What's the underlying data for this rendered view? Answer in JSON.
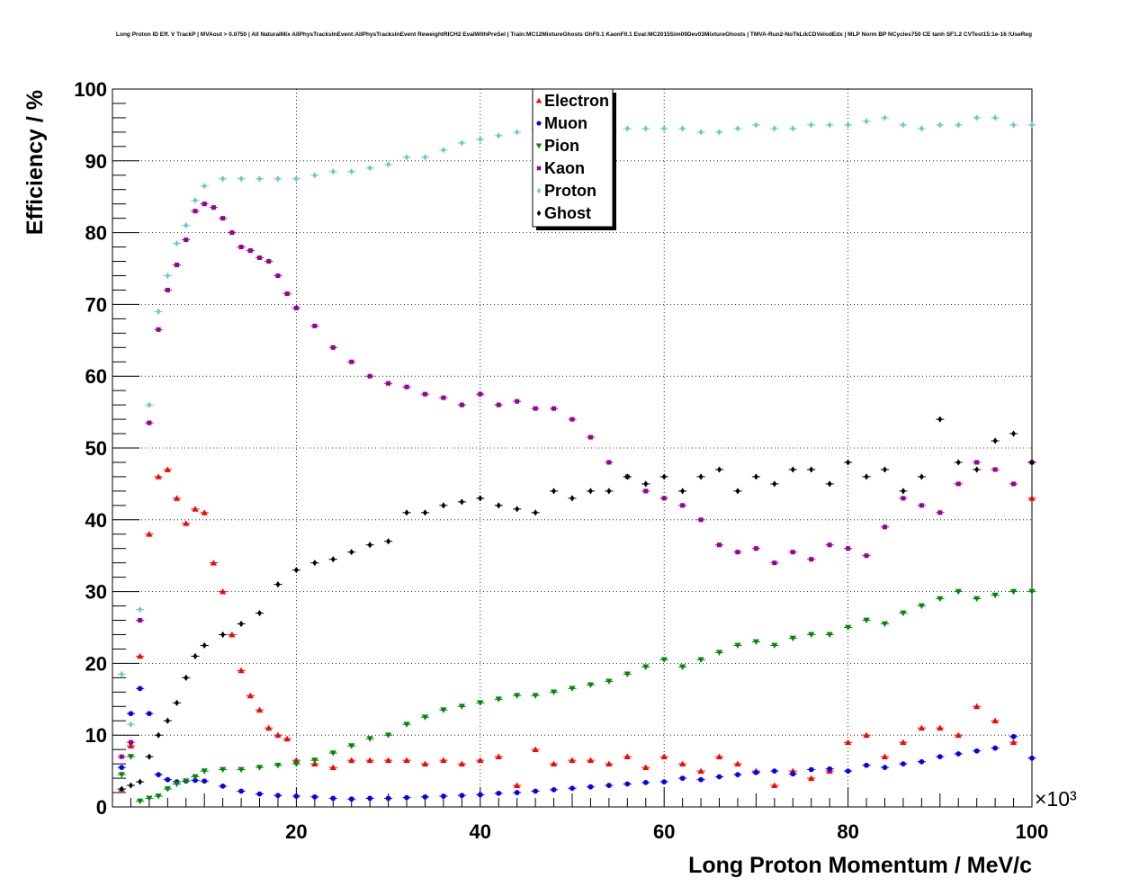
{
  "chart_data": {
    "type": "scatter",
    "title": "Long Proton ID Eff. V TrackP | MVAout > 0.0750 | All NaturalMix AllPhysTracksInEvent:AllPhysTracksInEvent ReweightRICH2 EvalWithPreSel | Train:MC12MixtureGhosts GhF0.1 KaonF0.1 Eval:MC2015Sim09Dev03MixtureGhosts | TMVA-Run2-NoTkLikCDVelodEdx | MLP Norm BP NCycles750 CE tanh SF1.2 CVTest15:1e-16 !UseReg",
    "xlabel": "Long Proton Momentum / MeV/c",
    "ylabel": "Efficiency / %",
    "x_multiplier": "×10³",
    "xlim": [
      0,
      100000
    ],
    "ylim": [
      0,
      100
    ],
    "xticks": [
      20,
      40,
      60,
      80,
      100
    ],
    "yticks": [
      0,
      10,
      20,
      30,
      40,
      50,
      60,
      70,
      80,
      90,
      100
    ],
    "grid": true,
    "legend_position": "top-center",
    "series": [
      {
        "name": "Electron",
        "color": "#ff0000",
        "marker": "triangle-up",
        "x": [
          1000,
          2000,
          3000,
          4000,
          5000,
          6000,
          7000,
          8000,
          9000,
          10000,
          11000,
          12000,
          13000,
          14000,
          15000,
          16000,
          17000,
          18000,
          19000,
          20000,
          22000,
          24000,
          26000,
          28000,
          30000,
          32000,
          34000,
          36000,
          38000,
          40000,
          42000,
          44000,
          46000,
          48000,
          50000,
          52000,
          54000,
          56000,
          58000,
          60000,
          62000,
          64000,
          66000,
          68000,
          70000,
          72000,
          74000,
          76000,
          78000,
          80000,
          82000,
          84000,
          86000,
          88000,
          90000,
          92000,
          94000,
          96000,
          98000,
          100000
        ],
        "y": [
          2.5,
          8.5,
          21,
          38,
          46,
          47,
          43,
          39.5,
          41.5,
          41,
          34,
          30,
          24,
          19,
          15.5,
          13.5,
          11,
          10,
          9.5,
          6.5,
          6,
          5.5,
          6.5,
          6.5,
          6.5,
          6.5,
          6,
          6.5,
          6,
          6.5,
          7,
          3,
          8,
          6,
          6.5,
          6.5,
          6,
          7,
          5.5,
          7,
          6,
          5,
          7,
          6,
          5,
          3,
          5,
          4,
          5,
          9,
          10,
          7,
          9,
          11,
          11,
          10,
          14,
          12,
          9,
          43
        ]
      },
      {
        "name": "Muon",
        "color": "#0000ff",
        "marker": "circle",
        "x": [
          1000,
          2000,
          3000,
          4000,
          5000,
          6000,
          7000,
          8000,
          9000,
          10000,
          12000,
          14000,
          16000,
          18000,
          20000,
          22000,
          24000,
          26000,
          28000,
          30000,
          32000,
          34000,
          36000,
          38000,
          40000,
          42000,
          44000,
          46000,
          48000,
          50000,
          52000,
          54000,
          56000,
          58000,
          60000,
          62000,
          64000,
          66000,
          68000,
          70000,
          72000,
          74000,
          76000,
          78000,
          80000,
          82000,
          84000,
          86000,
          88000,
          90000,
          92000,
          94000,
          96000,
          98000,
          100000
        ],
        "y": [
          5.5,
          13,
          16.5,
          13,
          4.5,
          3.8,
          3.5,
          3.6,
          3.7,
          3.6,
          2.9,
          2.2,
          1.8,
          1.6,
          1.5,
          1.4,
          1.2,
          1.1,
          1.2,
          1.2,
          1.3,
          1.4,
          1.5,
          1.6,
          1.7,
          1.9,
          2.0,
          2.2,
          2.4,
          2.6,
          2.8,
          3.0,
          3.2,
          3.4,
          3.5,
          4.0,
          3.8,
          4.2,
          4.5,
          4.8,
          5.0,
          4.6,
          5.2,
          5.3,
          5.0,
          5.8,
          5.5,
          6.0,
          6.3,
          7.0,
          7.4,
          7.8,
          8.2,
          9.8,
          6.8
        ]
      },
      {
        "name": "Pion",
        "color": "#008800",
        "marker": "triangle-down",
        "x": [
          1000,
          2000,
          3000,
          4000,
          5000,
          6000,
          7000,
          8000,
          9000,
          10000,
          12000,
          14000,
          16000,
          18000,
          20000,
          22000,
          24000,
          26000,
          28000,
          30000,
          32000,
          34000,
          36000,
          38000,
          40000,
          42000,
          44000,
          46000,
          48000,
          50000,
          52000,
          54000,
          56000,
          58000,
          60000,
          62000,
          64000,
          66000,
          68000,
          70000,
          72000,
          74000,
          76000,
          78000,
          80000,
          82000,
          84000,
          86000,
          88000,
          90000,
          92000,
          94000,
          96000,
          98000,
          100000
        ],
        "y": [
          4.5,
          7,
          0.8,
          1.2,
          1.5,
          2.5,
          3.2,
          3.6,
          4.2,
          5,
          5.2,
          5.2,
          5.5,
          5.8,
          6,
          6.5,
          7.5,
          8.5,
          9.5,
          10,
          11.5,
          12.5,
          13.5,
          14,
          14.5,
          15,
          15.5,
          15.5,
          16,
          16.5,
          17,
          17.5,
          18.5,
          19.5,
          20.5,
          19.5,
          20.5,
          21.5,
          22.5,
          23,
          22.5,
          23.5,
          24,
          24,
          25,
          26,
          25.5,
          27,
          28,
          29,
          30,
          29,
          29.5,
          30,
          30
        ]
      },
      {
        "name": "Kaon",
        "color": "#990099",
        "marker": "square",
        "x": [
          1000,
          2000,
          3000,
          4000,
          5000,
          6000,
          7000,
          8000,
          9000,
          10000,
          11000,
          12000,
          13000,
          14000,
          15000,
          16000,
          17000,
          18000,
          19000,
          20000,
          22000,
          24000,
          26000,
          28000,
          30000,
          32000,
          34000,
          36000,
          38000,
          40000,
          42000,
          44000,
          46000,
          48000,
          50000,
          52000,
          54000,
          56000,
          58000,
          60000,
          62000,
          64000,
          66000,
          68000,
          70000,
          72000,
          74000,
          76000,
          78000,
          80000,
          82000,
          84000,
          86000,
          88000,
          90000,
          92000,
          94000,
          96000,
          98000,
          100000
        ],
        "y": [
          7,
          9,
          26,
          53.5,
          66.5,
          72,
          75.5,
          79,
          83,
          84,
          83.5,
          82,
          80,
          78,
          77.5,
          76.5,
          76,
          74,
          71.5,
          69.5,
          67,
          64,
          62,
          60,
          59,
          58.5,
          57.5,
          57,
          56,
          57.5,
          56,
          56.5,
          55.5,
          55.5,
          54,
          51.5,
          48,
          46,
          44,
          43,
          42,
          40,
          36.5,
          35.5,
          36,
          34,
          35.5,
          34.5,
          36.5,
          36,
          35,
          39,
          43,
          42,
          41,
          45,
          48,
          47,
          45,
          48
        ]
      },
      {
        "name": "Proton",
        "color": "#66cccc",
        "marker": "diamond",
        "x": [
          1000,
          2000,
          3000,
          4000,
          5000,
          6000,
          7000,
          8000,
          9000,
          10000,
          12000,
          14000,
          16000,
          18000,
          20000,
          22000,
          24000,
          26000,
          28000,
          30000,
          32000,
          34000,
          36000,
          38000,
          40000,
          42000,
          44000,
          46000,
          48000,
          50000,
          52000,
          54000,
          56000,
          58000,
          60000,
          62000,
          64000,
          66000,
          68000,
          70000,
          72000,
          74000,
          76000,
          78000,
          80000,
          82000,
          84000,
          86000,
          88000,
          90000,
          92000,
          94000,
          96000,
          98000,
          100000
        ],
        "y": [
          18.5,
          11.5,
          27.5,
          56,
          69,
          74,
          78.5,
          81,
          84.5,
          86.5,
          87.5,
          87.5,
          87.5,
          87.5,
          87.5,
          88,
          88.5,
          88.5,
          89,
          89.5,
          90.5,
          90.5,
          91.5,
          92.5,
          93,
          93.5,
          94,
          94.5,
          94.5,
          94.5,
          94.5,
          94.5,
          94.5,
          94.5,
          94.5,
          94.5,
          94,
          94,
          94.5,
          95,
          94.5,
          94.5,
          95,
          95,
          95,
          95.5,
          96,
          95,
          94.5,
          95,
          95,
          96,
          96,
          95,
          95
        ]
      },
      {
        "name": "Ghost",
        "color": "#000000",
        "marker": "diamond",
        "x": [
          1000,
          2000,
          3000,
          4000,
          5000,
          6000,
          7000,
          8000,
          9000,
          10000,
          12000,
          14000,
          16000,
          18000,
          20000,
          22000,
          24000,
          26000,
          28000,
          30000,
          32000,
          34000,
          36000,
          38000,
          40000,
          42000,
          44000,
          46000,
          48000,
          50000,
          52000,
          54000,
          56000,
          58000,
          60000,
          62000,
          64000,
          66000,
          68000,
          70000,
          72000,
          74000,
          76000,
          78000,
          80000,
          82000,
          84000,
          86000,
          88000,
          90000,
          92000,
          94000,
          96000,
          98000,
          100000
        ],
        "y": [
          2.5,
          3,
          3.5,
          7,
          10,
          12,
          14.5,
          18,
          21,
          22.5,
          24,
          25.5,
          27,
          31,
          33,
          34,
          34.5,
          35.5,
          36.5,
          37,
          41,
          41,
          42,
          42.5,
          43,
          42,
          41.5,
          41,
          44,
          43,
          44,
          44,
          46,
          45,
          46,
          44,
          46,
          47,
          44,
          46,
          45,
          47,
          47,
          45,
          48,
          46,
          47,
          44,
          46,
          54,
          48,
          47,
          51,
          52,
          48
        ]
      }
    ]
  }
}
